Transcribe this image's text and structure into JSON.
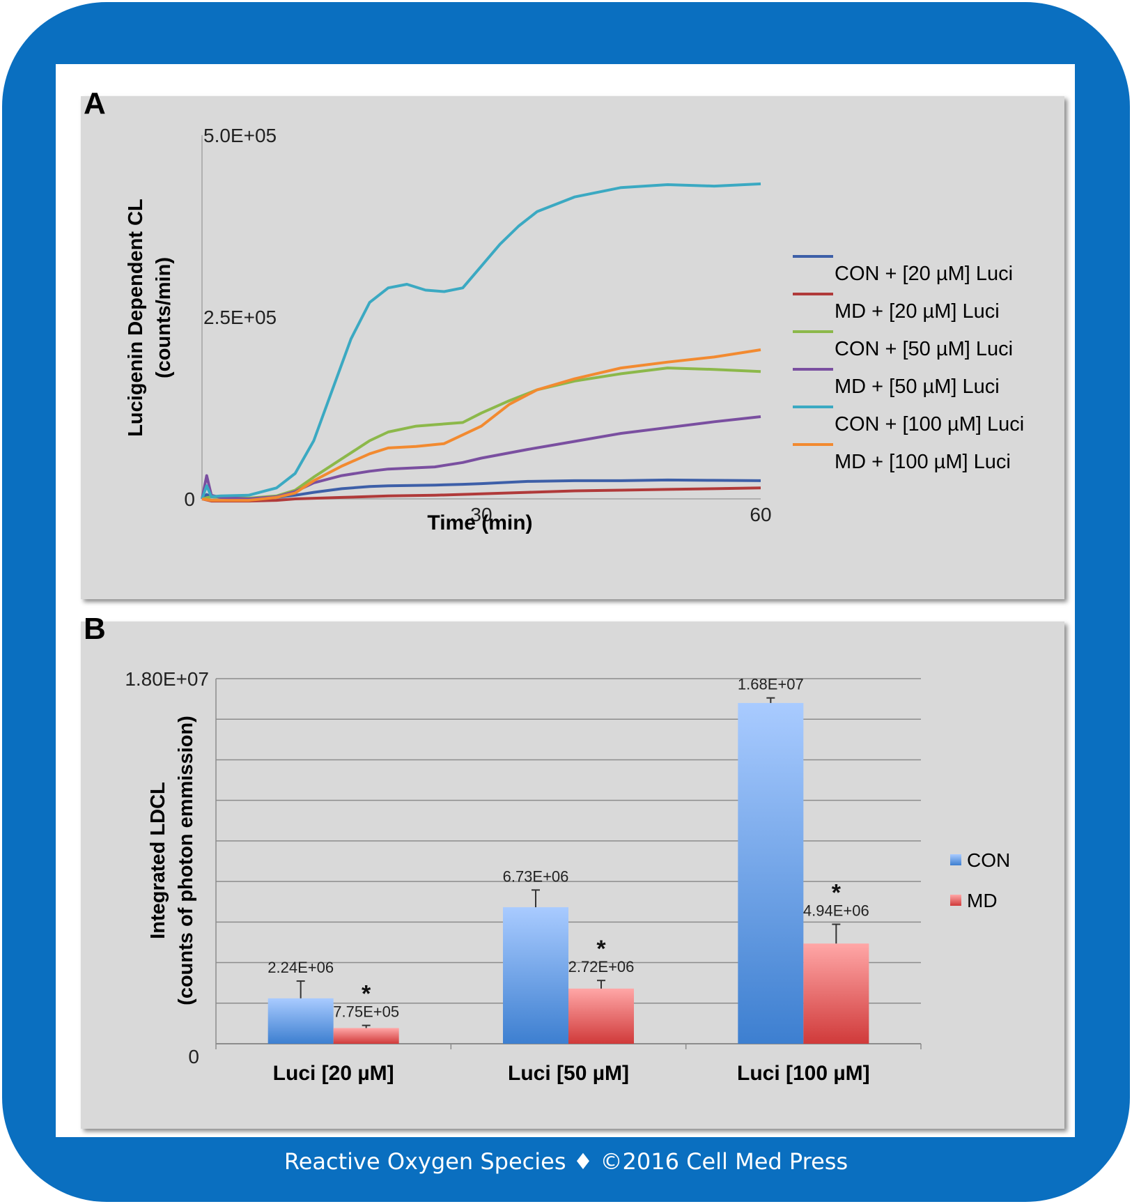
{
  "footer": "Reactive Oxygen Species ♦ ©2016 Cell Med Press",
  "panels": {
    "a_label": "A",
    "b_label": "B"
  },
  "chart_data": [
    {
      "type": "line",
      "title": "",
      "xlabel": "Time (min)",
      "ylabel_line1": "Lucigenin Dependent CL",
      "ylabel_line2": "(counts/min)",
      "xlim": [
        0,
        60
      ],
      "ylim": [
        0,
        500000
      ],
      "x_ticks": [
        30,
        60
      ],
      "x_tick_labels": [
        "30",
        "60"
      ],
      "y_ticks": [
        0,
        250000,
        500000
      ],
      "y_tick_labels": [
        "0",
        "2.5E+05",
        "5.0E+05"
      ],
      "legend_position": "right",
      "grid": false,
      "series": [
        {
          "name": "CON + [20 µM] Luci",
          "color": "#3d5fa8",
          "points": [
            [
              0,
              0
            ],
            [
              0.5,
              6000
            ],
            [
              1,
              3000
            ],
            [
              2,
              2000
            ],
            [
              5,
              1000
            ],
            [
              8,
              2000
            ],
            [
              10,
              5000
            ],
            [
              12,
              9000
            ],
            [
              15,
              14000
            ],
            [
              18,
              17000
            ],
            [
              20,
              18000
            ],
            [
              25,
              19000
            ],
            [
              28,
              20000
            ],
            [
              30,
              21000
            ],
            [
              35,
              24000
            ],
            [
              40,
              25000
            ],
            [
              45,
              25000
            ],
            [
              50,
              26000
            ],
            [
              55,
              25500
            ],
            [
              60,
              25000
            ]
          ]
        },
        {
          "name": "MD + [20 µM] Luci",
          "color": "#b03a3a",
          "points": [
            [
              0,
              0
            ],
            [
              1,
              -3000
            ],
            [
              5,
              -3000
            ],
            [
              8,
              -2000
            ],
            [
              10,
              0
            ],
            [
              15,
              2000
            ],
            [
              20,
              4000
            ],
            [
              25,
              5000
            ],
            [
              30,
              7000
            ],
            [
              35,
              9000
            ],
            [
              40,
              11000
            ],
            [
              45,
              12000
            ],
            [
              50,
              13000
            ],
            [
              55,
              14000
            ],
            [
              60,
              15000
            ]
          ]
        },
        {
          "name": "CON + [50 µM] Luci",
          "color": "#8cb84a",
          "points": [
            [
              0,
              0
            ],
            [
              1,
              3000
            ],
            [
              2,
              2000
            ],
            [
              5,
              1000
            ],
            [
              8,
              4000
            ],
            [
              10,
              12000
            ],
            [
              12,
              30000
            ],
            [
              15,
              55000
            ],
            [
              18,
              80000
            ],
            [
              20,
              92000
            ],
            [
              23,
              100000
            ],
            [
              25,
              102000
            ],
            [
              28,
              105000
            ],
            [
              30,
              118000
            ],
            [
              33,
              135000
            ],
            [
              36,
              150000
            ],
            [
              40,
              162000
            ],
            [
              45,
              172000
            ],
            [
              50,
              180000
            ],
            [
              55,
              178000
            ],
            [
              60,
              175000
            ]
          ]
        },
        {
          "name": "MD + [50 µM] Luci",
          "color": "#7a4fa0",
          "points": [
            [
              0,
              0
            ],
            [
              0.5,
              32000
            ],
            [
              1,
              5000
            ],
            [
              2,
              2000
            ],
            [
              5,
              0
            ],
            [
              8,
              3000
            ],
            [
              10,
              10000
            ],
            [
              12,
              22000
            ],
            [
              15,
              32000
            ],
            [
              18,
              38000
            ],
            [
              20,
              41000
            ],
            [
              25,
              44000
            ],
            [
              28,
              50000
            ],
            [
              30,
              56000
            ],
            [
              35,
              68000
            ],
            [
              40,
              79000
            ],
            [
              45,
              90000
            ],
            [
              50,
              98000
            ],
            [
              55,
              106000
            ],
            [
              60,
              113000
            ]
          ]
        },
        {
          "name": "CON + [100 µM] Luci",
          "color": "#3ba9c2",
          "points": [
            [
              0,
              0
            ],
            [
              0.5,
              18000
            ],
            [
              1,
              3000
            ],
            [
              2,
              4000
            ],
            [
              5,
              5000
            ],
            [
              8,
              15000
            ],
            [
              10,
              35000
            ],
            [
              12,
              80000
            ],
            [
              14,
              150000
            ],
            [
              16,
              220000
            ],
            [
              18,
              270000
            ],
            [
              20,
              290000
            ],
            [
              22,
              295000
            ],
            [
              24,
              287000
            ],
            [
              26,
              285000
            ],
            [
              28,
              290000
            ],
            [
              30,
              320000
            ],
            [
              32,
              350000
            ],
            [
              34,
              375000
            ],
            [
              36,
              395000
            ],
            [
              40,
              415000
            ],
            [
              45,
              428000
            ],
            [
              50,
              432000
            ],
            [
              55,
              430000
            ],
            [
              60,
              433000
            ]
          ]
        },
        {
          "name": "MD + [100 µM] Luci",
          "color": "#f28a30",
          "points": [
            [
              0,
              0
            ],
            [
              1,
              -2000
            ],
            [
              3,
              -2000
            ],
            [
              5,
              -2000
            ],
            [
              8,
              2000
            ],
            [
              10,
              8000
            ],
            [
              12,
              25000
            ],
            [
              15,
              45000
            ],
            [
              18,
              62000
            ],
            [
              20,
              70000
            ],
            [
              23,
              72000
            ],
            [
              26,
              76000
            ],
            [
              30,
              100000
            ],
            [
              33,
              130000
            ],
            [
              36,
              150000
            ],
            [
              40,
              165000
            ],
            [
              45,
              180000
            ],
            [
              50,
              188000
            ],
            [
              55,
              195000
            ],
            [
              60,
              205000
            ]
          ]
        }
      ]
    },
    {
      "type": "bar",
      "title": "",
      "xlabel": "",
      "ylabel_line1": "Integrated LDCL",
      "ylabel_line2": "(counts of photon emmission)",
      "categories": [
        "Luci [20 µM]",
        "Luci [50 µM]",
        "Luci [100 µM]"
      ],
      "ylim": [
        0,
        18000000
      ],
      "y_tick_labels": [
        "0",
        "1.80E+07"
      ],
      "grid": true,
      "gridlines": 9,
      "legend_position": "right",
      "series": [
        {
          "name": "CON",
          "color_top": "#a9cbff",
          "color_bottom": "#3d7fd0",
          "values": [
            2240000,
            6730000,
            16800000
          ],
          "value_labels": [
            "2.24E+06",
            "6.73E+06",
            "1.68E+07"
          ],
          "errors": [
            850000,
            850000,
            250000
          ]
        },
        {
          "name": "MD",
          "color_top": "#ffa7a7",
          "color_bottom": "#d03a3a",
          "values": [
            775000,
            2720000,
            4940000
          ],
          "value_labels": [
            "7.75E+05",
            "2.72E+06",
            "4.94E+06"
          ],
          "errors": [
            130000,
            400000,
            950000
          ]
        }
      ],
      "significance_marker": "*"
    }
  ]
}
